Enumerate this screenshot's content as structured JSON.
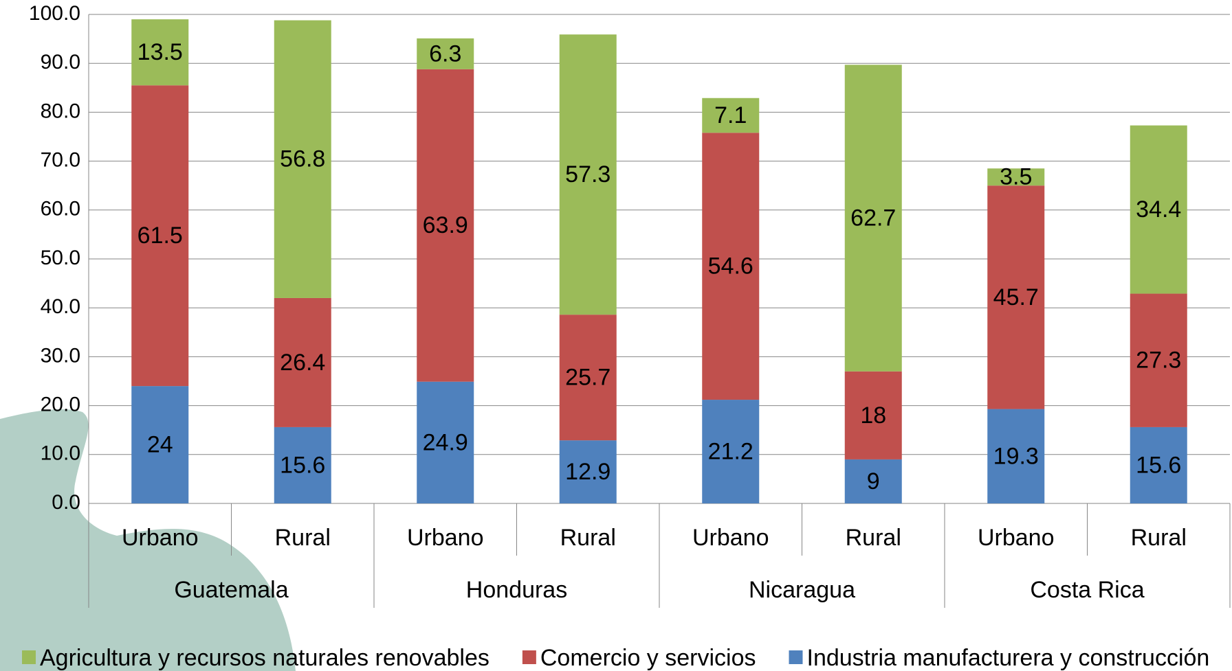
{
  "chart_data": {
    "type": "stacked_bar",
    "categories": [
      "Urbano",
      "Rural",
      "Urbano",
      "Rural",
      "Urbano",
      "Rural",
      "Urbano",
      "Rural"
    ],
    "groups": [
      "Guatemala",
      "Honduras",
      "Nicaragua",
      "Costa Rica"
    ],
    "series": [
      {
        "name": "Agricultura y recursos naturales renovables",
        "color": "#9bbb59",
        "values": [
          13.5,
          56.8,
          6.3,
          57.3,
          7.1,
          62.7,
          3.5,
          34.4
        ]
      },
      {
        "name": "Comercio y servicios",
        "color": "#c0504d",
        "values": [
          61.5,
          26.4,
          63.9,
          25.7,
          54.6,
          18,
          45.7,
          27.3
        ]
      },
      {
        "name": "Industria manufacturera y construcción",
        "color": "#4f81bd",
        "values": [
          24,
          15.6,
          24.9,
          12.9,
          21.2,
          9,
          19.3,
          15.6
        ]
      }
    ],
    "ylim": [
      0,
      100
    ],
    "yticks": [
      {
        "value": 0,
        "label": "0.0"
      },
      {
        "value": 10,
        "label": "10.0"
      },
      {
        "value": 20,
        "label": "20.0"
      },
      {
        "value": 30,
        "label": "30.0"
      },
      {
        "value": 40,
        "label": "40.0"
      },
      {
        "value": 50,
        "label": "50.0"
      },
      {
        "value": 60,
        "label": "60.0"
      },
      {
        "value": 70,
        "label": "70.0"
      },
      {
        "value": 80,
        "label": "80.0"
      },
      {
        "value": 90,
        "label": "90.0"
      },
      {
        "value": 100,
        "label": "100.0"
      }
    ],
    "grid": true,
    "legend": "bottom"
  }
}
